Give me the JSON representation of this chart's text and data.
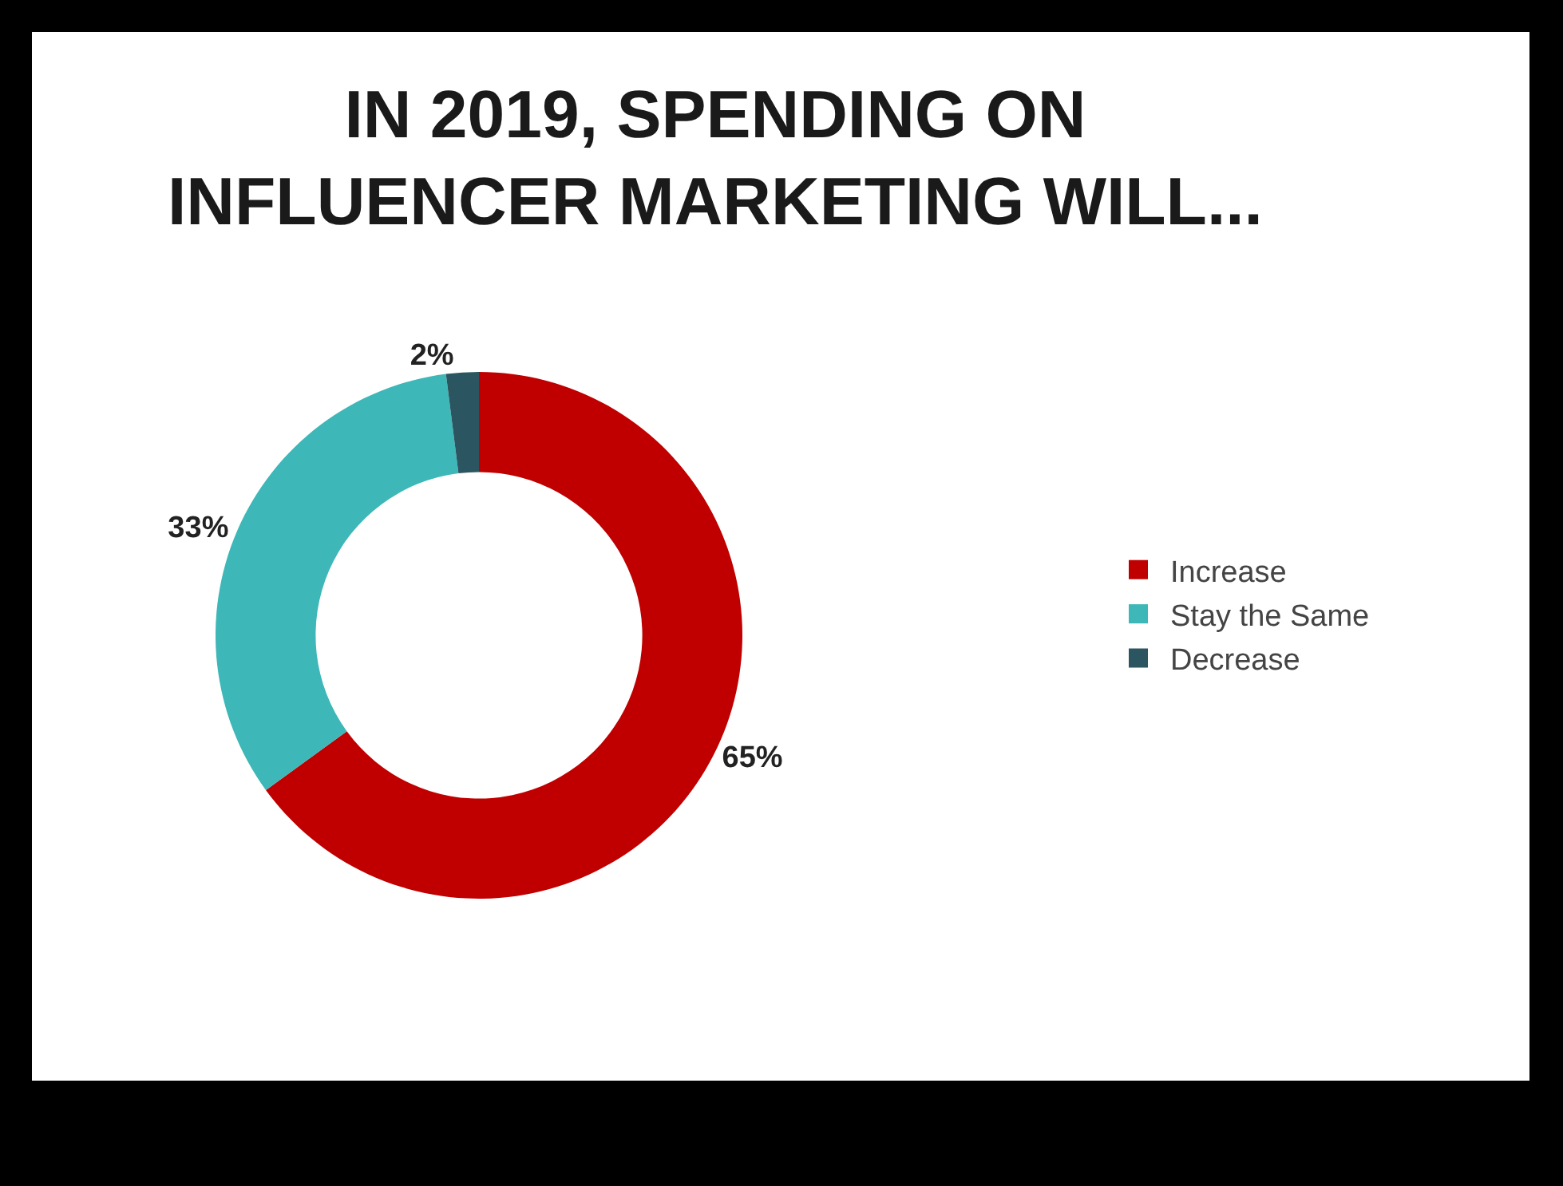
{
  "chart_data": {
    "type": "donut",
    "title": "IN 2019, SPENDING ON INFLUENCER MARKETING WILL...",
    "categories": [
      "Increase",
      "Stay the Same",
      "Decrease"
    ],
    "values": [
      65,
      33,
      2
    ],
    "value_labels": [
      "65%",
      "33%",
      "2%"
    ],
    "colors": [
      "#c00000",
      "#3db7b7",
      "#2b5560"
    ],
    "legend": "right"
  }
}
